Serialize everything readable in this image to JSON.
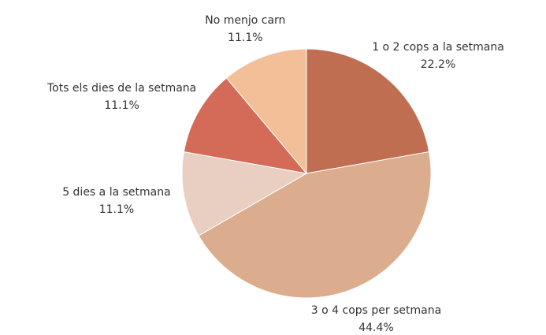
{
  "chart_data": {
    "type": "pie",
    "categories": [
      "1 o 2 cops a la setmana",
      "3 o 4 cops per setmana",
      "5 dies a la setmana",
      "Tots els dies de la setmana",
      "No menjo carn"
    ],
    "values": [
      22.2,
      44.4,
      11.1,
      11.1,
      11.1
    ],
    "value_labels": [
      "22.2%",
      "44.4%",
      "11.1%",
      "11.1%",
      "11.1%"
    ],
    "colors": [
      "#c06e52",
      "#dcac8e",
      "#e8cfc2",
      "#d36b58",
      "#f2bf98"
    ]
  }
}
